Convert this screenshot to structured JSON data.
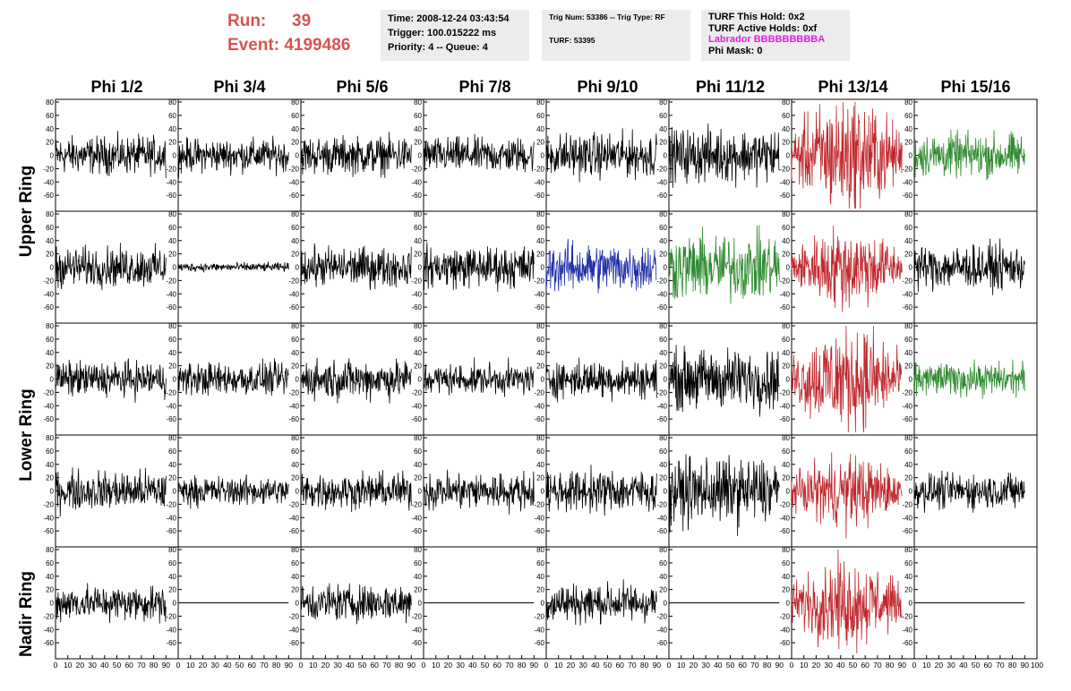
{
  "run_info": {
    "run_label": "Run:",
    "run_value": "39",
    "event_label": "Event:",
    "event_value": "4199486"
  },
  "trigger_info": {
    "time": "Time: 2008-12-24 03:43:54",
    "trigger": "Trigger: 100.015222 ms",
    "priority": "Priority: 4 -- Queue: 4"
  },
  "trig_info": {
    "trig": "Trig Num: 53386 -- Trig Type: RF",
    "turf": "TURF: 53395"
  },
  "turf_info": {
    "this_hold": "TURF This Hold: 0x2",
    "active_holds": "TURF Active Holds: 0xf",
    "labrador": "Labrador BBBBBBBBBA",
    "phi_mask": "Phi Mask: 0"
  },
  "colors": {
    "black": "#000000",
    "red": "#c0282d",
    "green": "#2e8b2e",
    "blue": "#1f2fa8",
    "run_text": "#d9534f",
    "info_bg": "#ececec",
    "labrador": "#e020e0"
  },
  "chart_data": {
    "type": "line",
    "columns": [
      "Phi 1/2",
      "Phi 3/4",
      "Phi 5/6",
      "Phi 7/8",
      "Phi 9/10",
      "Phi 11/12",
      "Phi 13/14",
      "Phi 15/16"
    ],
    "rings": [
      "Upper Ring",
      "Lower Ring",
      "Nadir Ring"
    ],
    "y_ticks": [
      80,
      60,
      40,
      20,
      0,
      -20,
      -40,
      -60
    ],
    "ylim": [
      -80,
      80
    ],
    "x_ticks": [
      0,
      10,
      20,
      30,
      40,
      50,
      60,
      70,
      80,
      90,
      100
    ],
    "x_tick_labels_text": "0 10 20 30 40 50 60 70 80 90",
    "xlim": [
      0,
      100
    ],
    "rows": [
      {
        "ring": "Upper Ring",
        "panels": [
          {
            "color": "black",
            "amplitude": 17
          },
          {
            "color": "black",
            "amplitude": 15
          },
          {
            "color": "black",
            "amplitude": 17
          },
          {
            "color": "black",
            "amplitude": 16
          },
          {
            "color": "black",
            "amplitude": 20
          },
          {
            "color": "black",
            "amplitude": 24
          },
          {
            "color": "red",
            "amplitude": 38
          },
          {
            "color": "green",
            "amplitude": 20
          }
        ]
      },
      {
        "ring": "Upper Ring",
        "panels": [
          {
            "color": "black",
            "amplitude": 18
          },
          {
            "color": "black",
            "amplitude": 4
          },
          {
            "color": "black",
            "amplitude": 18
          },
          {
            "color": "black",
            "amplitude": 19
          },
          {
            "color": "blue",
            "amplitude": 22
          },
          {
            "color": "green",
            "amplitude": 30
          },
          {
            "color": "red",
            "amplitude": 26
          },
          {
            "color": "black",
            "amplitude": 20
          }
        ]
      },
      {
        "ring": "Lower Ring",
        "panels": [
          {
            "color": "black",
            "amplitude": 16
          },
          {
            "color": "black",
            "amplitude": 15
          },
          {
            "color": "black",
            "amplitude": 18
          },
          {
            "color": "black",
            "amplitude": 14
          },
          {
            "color": "black",
            "amplitude": 17
          },
          {
            "color": "black",
            "amplitude": 27
          },
          {
            "color": "red",
            "amplitude": 35
          },
          {
            "color": "green",
            "amplitude": 15
          }
        ]
      },
      {
        "ring": "Lower Ring",
        "panels": [
          {
            "color": "black",
            "amplitude": 18
          },
          {
            "color": "black",
            "amplitude": 13
          },
          {
            "color": "black",
            "amplitude": 16
          },
          {
            "color": "black",
            "amplitude": 17
          },
          {
            "color": "black",
            "amplitude": 19
          },
          {
            "color": "black",
            "amplitude": 30
          },
          {
            "color": "red",
            "amplitude": 23
          },
          {
            "color": "black",
            "amplitude": 16
          }
        ]
      },
      {
        "ring": "Nadir Ring",
        "panels": [
          {
            "color": "black",
            "amplitude": 16
          },
          {
            "color": "black",
            "amplitude": 0
          },
          {
            "color": "black",
            "amplitude": 17
          },
          {
            "color": "black",
            "amplitude": 0
          },
          {
            "color": "black",
            "amplitude": 18
          },
          {
            "color": "black",
            "amplitude": 0
          },
          {
            "color": "red",
            "amplitude": 28
          },
          {
            "color": "black",
            "amplitude": 0
          }
        ]
      }
    ]
  }
}
